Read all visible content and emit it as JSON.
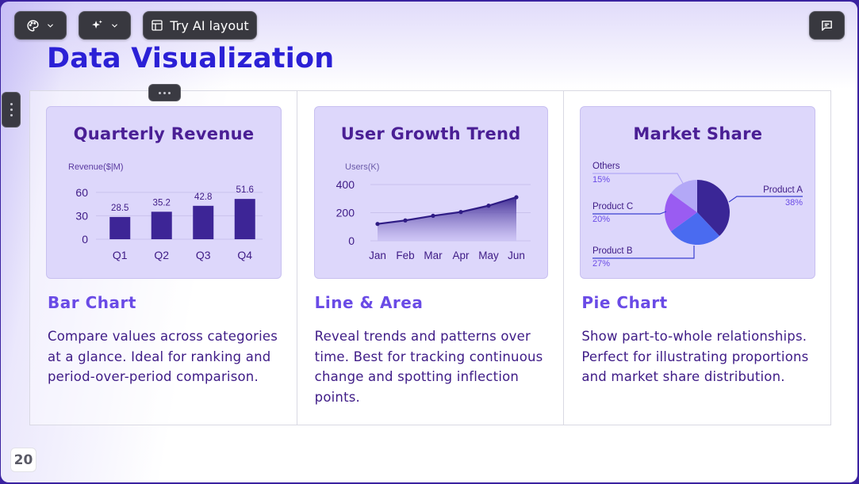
{
  "toolbar": {
    "ai_layout_label": "Try AI layout"
  },
  "slide": {
    "title": "Data Visualization",
    "page_number": "20"
  },
  "columns": [
    {
      "heading": "Bar Chart",
      "description": "Compare values across categories at a glance. Ideal for ranking and period-over-period comparison."
    },
    {
      "heading": "Line & Area",
      "description": "Reveal trends and patterns over time. Best for tracking continuous change and spotting inflection points."
    },
    {
      "heading": "Pie Chart",
      "description": "Show part-to-whole relationships. Perfect for illustrating proportions and market share distribution."
    }
  ],
  "colors": {
    "bar": "#3d2596",
    "line": "#2f1c85",
    "pie": [
      "#3a2696",
      "#4a6bf0",
      "#9a5cf2",
      "#b3a8f7"
    ]
  },
  "chart_data": [
    {
      "type": "bar",
      "title": "Quarterly Revenue",
      "ylabel": "Revenue($|M)",
      "categories": [
        "Q1",
        "Q2",
        "Q3",
        "Q4"
      ],
      "values": [
        28.5,
        35.2,
        42.8,
        51.6
      ],
      "yticks": [
        0,
        30,
        60
      ],
      "ylim": [
        0,
        70
      ]
    },
    {
      "type": "area",
      "title": "User Growth Trend",
      "ylabel": "Users(K)",
      "categories": [
        "Jan",
        "Feb",
        "Mar",
        "Apr",
        "May",
        "Jun"
      ],
      "values": [
        120,
        145,
        178,
        205,
        250,
        310
      ],
      "yticks": [
        0,
        200,
        400
      ],
      "ylim": [
        0,
        400
      ]
    },
    {
      "type": "pie",
      "title": "Market Share",
      "labels": [
        "Product A",
        "Product B",
        "Product C",
        "Others"
      ],
      "values": [
        38,
        27,
        20,
        15
      ],
      "value_labels": [
        "38%",
        "27%",
        "20%",
        "15%"
      ]
    }
  ]
}
